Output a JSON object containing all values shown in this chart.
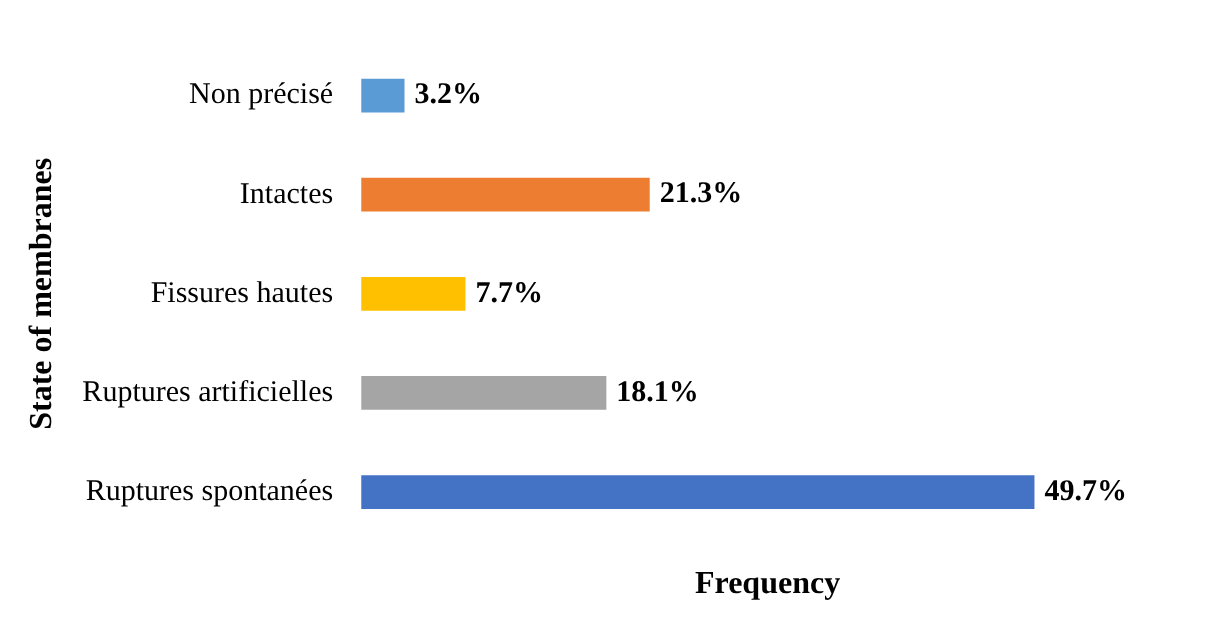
{
  "chart_data": {
    "type": "bar",
    "orientation": "horizontal",
    "xlabel": "Frequency",
    "ylabel": "State of membranes",
    "categories": [
      "Non précisé",
      "Intactes",
      "Fissures hautes",
      "Ruptures artificielles",
      "Ruptures spontanées"
    ],
    "values": [
      3.2,
      21.3,
      7.7,
      18.1,
      49.7
    ],
    "colors": [
      "#5b9bd5",
      "#ed7d31",
      "#ffc000",
      "#a5a5a5",
      "#4472c4"
    ],
    "value_labels": [
      "3.2%",
      "21.3%",
      "7.7%",
      "18.1%",
      "49.7%"
    ],
    "tick_labels": "y",
    "grid": false,
    "legend": false
  }
}
